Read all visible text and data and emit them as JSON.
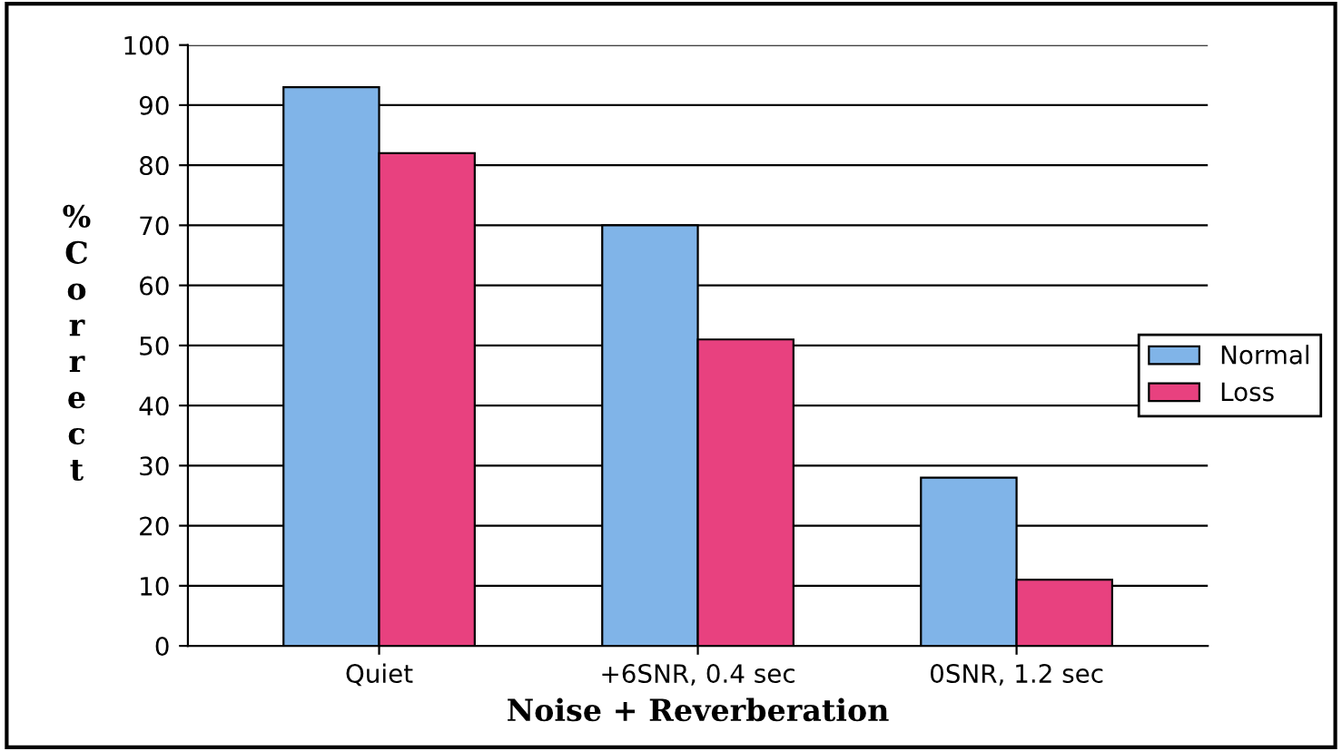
{
  "chart_data": {
    "type": "bar",
    "xlabel": "Noise + Reverberation",
    "ylabel": "%\nC\no\nr\nr\ne\nc\nt",
    "categories": [
      "Quiet",
      "+6SNR, 0.4 sec",
      "0SNR, 1.2 sec"
    ],
    "series": [
      {
        "name": "Normal",
        "color": "#80b4e8",
        "values": [
          93,
          70,
          28
        ]
      },
      {
        "name": "Loss",
        "color": "#e8417f",
        "values": [
          82,
          51,
          11
        ]
      }
    ],
    "ylim": [
      0,
      100
    ],
    "yticks": [
      0,
      10,
      20,
      30,
      40,
      50,
      60,
      70,
      80,
      90,
      100
    ],
    "grid": "y",
    "legend": "right"
  }
}
